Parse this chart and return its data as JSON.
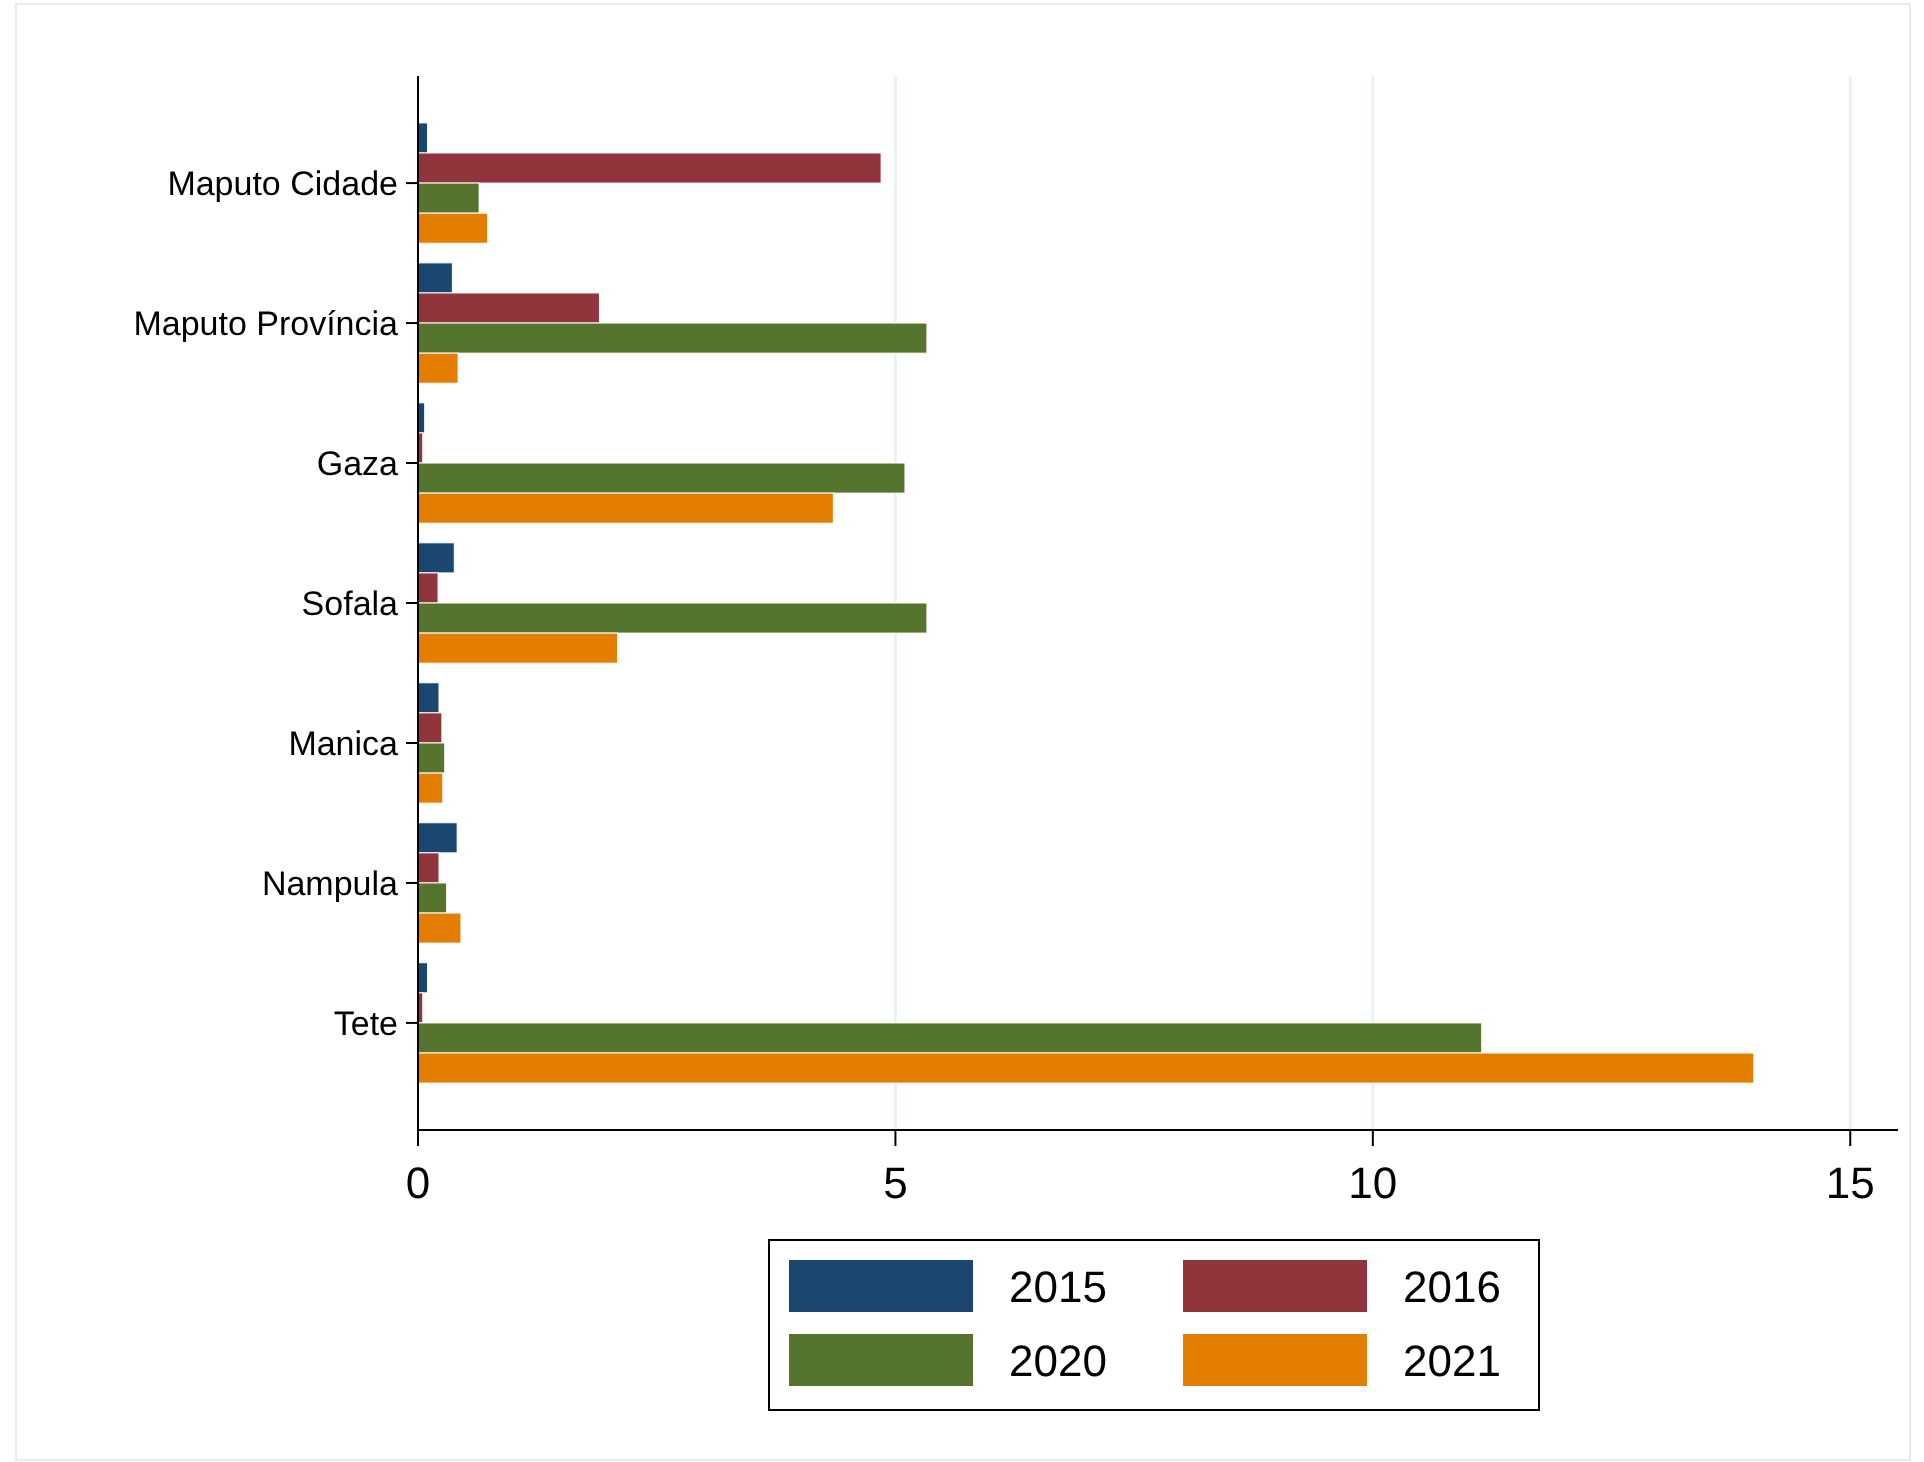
{
  "chart_data": {
    "type": "bar",
    "orientation": "horizontal",
    "categories": [
      "Maputo Cidade",
      "Maputo Província",
      "Gaza",
      "Sofala",
      "Manica",
      "Nampula",
      "Tete"
    ],
    "series": [
      {
        "name": "2015",
        "color": "#1a476f",
        "values": [
          0.1,
          0.36,
          0.07,
          0.38,
          0.22,
          0.41,
          0.1
        ]
      },
      {
        "name": "2016",
        "color": "#90353b",
        "values": [
          4.85,
          1.9,
          0.05,
          0.21,
          0.25,
          0.22,
          0.05
        ]
      },
      {
        "name": "2020",
        "color": "#55752f",
        "values": [
          0.64,
          5.33,
          5.1,
          5.33,
          0.28,
          0.3,
          11.14
        ]
      },
      {
        "name": "2021",
        "color": "#e37e00",
        "values": [
          0.73,
          0.42,
          4.35,
          2.09,
          0.26,
          0.45,
          13.99
        ]
      }
    ],
    "xlim": [
      0,
      15.5
    ],
    "xticks": [
      0,
      5,
      10,
      15
    ],
    "grid": "x",
    "legend": "bottom"
  }
}
